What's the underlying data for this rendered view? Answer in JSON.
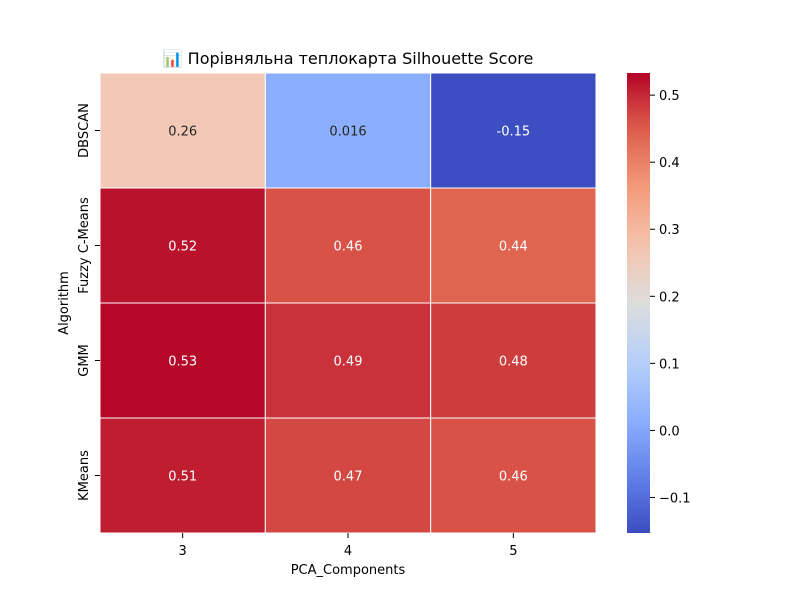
{
  "chart_data": {
    "type": "heatmap",
    "title": "📊 Порівняльна теплокарта Silhouette Score",
    "xlabel": "PCA_Components",
    "ylabel": "Algorithm",
    "x_categories": [
      "3",
      "4",
      "5"
    ],
    "y_categories": [
      "DBSCAN",
      "Fuzzy C-Means",
      "GMM",
      "KMeans"
    ],
    "values": [
      [
        0.26,
        0.016,
        -0.15
      ],
      [
        0.52,
        0.46,
        0.44
      ],
      [
        0.53,
        0.49,
        0.48
      ],
      [
        0.51,
        0.47,
        0.46
      ]
    ],
    "value_labels": [
      [
        "0.26",
        "0.016",
        "-0.15"
      ],
      [
        "0.52",
        "0.46",
        "0.44"
      ],
      [
        "0.53",
        "0.49",
        "0.48"
      ],
      [
        "0.51",
        "0.47",
        "0.46"
      ]
    ],
    "colormap": "coolwarm",
    "vmin": -0.153,
    "vmax": 0.533,
    "colorbar_ticks": [
      0.5,
      0.4,
      0.3,
      0.2,
      0.1,
      0.0,
      -0.1
    ],
    "colorbar_tick_labels": [
      "0.5",
      "0.4",
      "0.3",
      "0.2",
      "0.1",
      "0.0",
      "−0.1"
    ],
    "cell_border_color": "#ffffff"
  }
}
